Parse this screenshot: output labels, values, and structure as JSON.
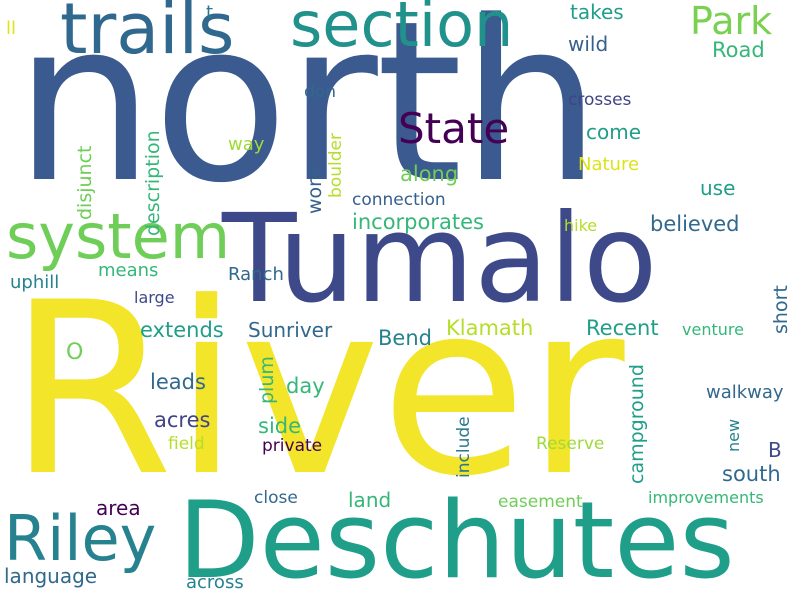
{
  "words": {
    "north": "north",
    "river": "River",
    "tumalo": "Tumalo",
    "deschutes": "Deschutes",
    "trails": "trails",
    "section": "section",
    "system": "system",
    "riley": "Riley",
    "state": "State",
    "park": "Park",
    "road": "Road",
    "takes": "takes",
    "wild": "wild",
    "t": "t",
    "ll": "ll",
    "don": "don",
    "crosses": "crosses",
    "come": "come",
    "way": "way",
    "boulder": "boulder",
    "nature": "Nature",
    "along": "along",
    "connection": "connection",
    "use": "use",
    "incorporates": "incorporates",
    "believed": "believed",
    "hike": "hike",
    "description": "description",
    "disjunct": "disjunct",
    "word": "word",
    "means": "means",
    "uphill": "uphill",
    "ranch": "Ranch",
    "large": "large",
    "short": "short",
    "extends": "extends",
    "sunriver": "Sunriver",
    "klamath": "Klamath",
    "recent": "Recent",
    "venture": "venture",
    "o": "O",
    "bend": "Bend",
    "leads": "leads",
    "day": "day",
    "plum": "plum",
    "campground": "campground",
    "walkway": "walkway",
    "acres": "acres",
    "side": "side",
    "field": "field",
    "private": "private",
    "include": "include",
    "reserve": "Reserve",
    "new": "new",
    "b": "B",
    "south": "south",
    "area": "area",
    "close": "close",
    "land": "land",
    "easement": "easement",
    "improvements": "improvements",
    "language": "language",
    "across": "across"
  },
  "palette": {
    "dark_purple": "#440154",
    "indigo": "#482878",
    "slate_blue": "#3e4989",
    "steel_blue": "#31688e",
    "teal_blue": "#26828e",
    "teal": "#1f9e89",
    "green_teal": "#35b779",
    "green": "#6ece58",
    "lime": "#b5de2b",
    "yellow": "#fde725"
  }
}
